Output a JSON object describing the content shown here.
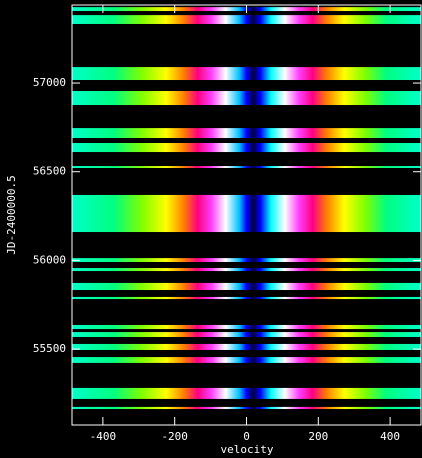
{
  "chart_data": {
    "type": "image",
    "xlabel": "velocity",
    "ylabel": "JD-2400000.5",
    "xlim": [
      -486,
      486
    ],
    "xticks": [
      -400,
      -200,
      0,
      200,
      400
    ],
    "ylim": [
      55072,
      57440
    ],
    "yticks": [
      55500,
      56000,
      56500,
      57000
    ],
    "y_ranges": [
      [
        57428,
        57406
      ],
      [
        57383,
        57333
      ],
      [
        57090,
        57017
      ],
      [
        56955,
        56876
      ],
      [
        56746,
        56690
      ],
      [
        56662,
        56611
      ],
      [
        56532,
        56521
      ],
      [
        56369,
        56160
      ],
      [
        56013,
        55991
      ],
      [
        55957,
        55940
      ],
      [
        55873,
        55833
      ],
      [
        55794,
        55782
      ],
      [
        55636,
        55613
      ],
      [
        55596,
        55568
      ],
      [
        55529,
        55495
      ],
      [
        55455,
        55422
      ],
      [
        55281,
        55219
      ],
      [
        55174,
        55162
      ]
    ]
  }
}
